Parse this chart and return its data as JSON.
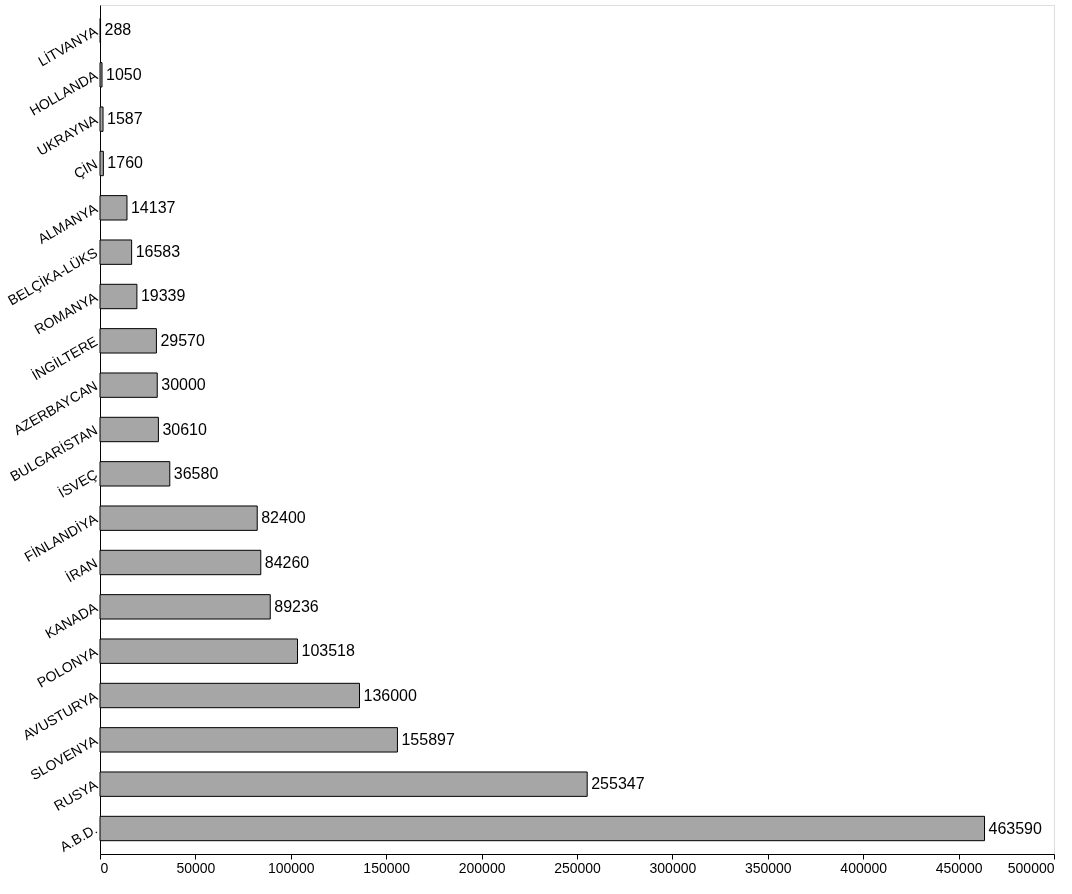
{
  "chart_data": {
    "type": "bar",
    "orientation": "horizontal",
    "categories": [
      "LİTVANYA",
      "HOLLANDA",
      "UKRAYNA",
      "ÇİN",
      "ALMANYA",
      "BELÇİKA-LÜKS",
      "ROMANYA",
      "İNGİLTERE",
      "AZERBAYCAN",
      "BULGARİSTAN",
      "İSVEÇ",
      "FİNLANDİYA",
      "İRAN",
      "KANADA",
      "POLONYA",
      "AVUSTURYA",
      "SLOVENYA",
      "RUSYA",
      "A.B.D."
    ],
    "values": [
      288,
      1050,
      1587,
      1760,
      14137,
      16583,
      19339,
      29570,
      30000,
      30610,
      36580,
      82400,
      84260,
      89236,
      103518,
      136000,
      155897,
      255347,
      463590
    ],
    "color": "#a6a6a6",
    "xlim": [
      0,
      500000
    ],
    "xticks": [
      0,
      50000,
      100000,
      150000,
      200000,
      250000,
      300000,
      350000,
      400000,
      450000,
      500000
    ],
    "data_labels": true,
    "grid": false
  }
}
